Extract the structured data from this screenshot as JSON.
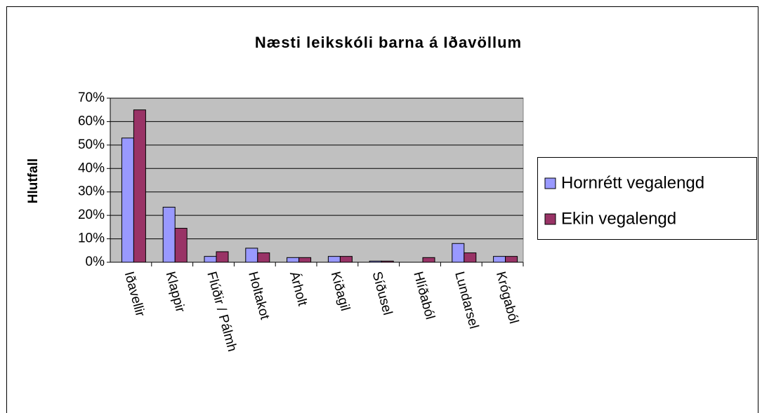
{
  "chart_data": {
    "type": "bar",
    "title": "Næsti leikskóli barna á Iðavöllum",
    "y_label": "Hlutfall",
    "categories": [
      "Iðavellir",
      "Klappir",
      "Flúðir / Pálmh",
      "Holtakot",
      "Árholt",
      "Kiðagil",
      "Síðusel",
      "Hlíðaból",
      "Lundarsel",
      "Krógaból"
    ],
    "series": [
      {
        "name": "Hornrétt vegalengd",
        "color": "#9999ff",
        "values": [
          53,
          23.5,
          2.5,
          6,
          2,
          2.5,
          0.5,
          0,
          8,
          2.5
        ]
      },
      {
        "name": "Ekin vegalengd",
        "color": "#993366",
        "values": [
          65,
          14.5,
          4.5,
          4,
          2,
          2.5,
          0.5,
          2,
          4,
          2.5
        ]
      }
    ],
    "ylim": [
      0,
      70
    ],
    "yticks": [
      {
        "value": 0,
        "label": "0%"
      },
      {
        "value": 10,
        "label": "10%"
      },
      {
        "value": 20,
        "label": "20%"
      },
      {
        "value": 30,
        "label": "30%"
      },
      {
        "value": 40,
        "label": "40%"
      },
      {
        "value": 50,
        "label": "50%"
      },
      {
        "value": 60,
        "label": "60%"
      },
      {
        "value": 70,
        "label": "70%"
      }
    ],
    "grid": true,
    "legend": "right",
    "plot_background": "#c0c0c0"
  }
}
